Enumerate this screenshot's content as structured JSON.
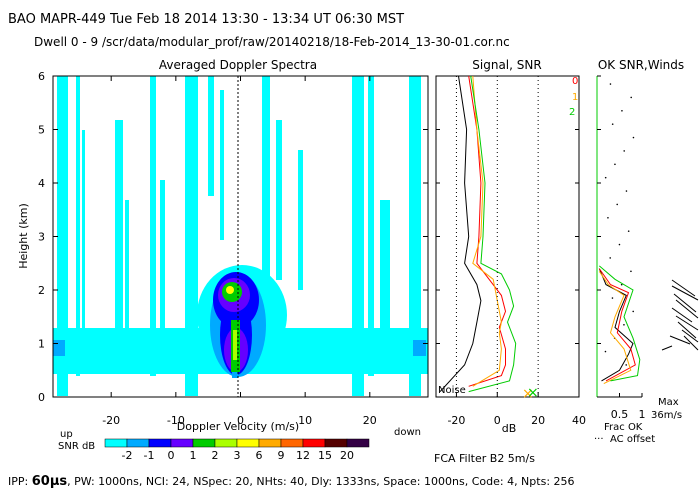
{
  "header": {
    "line1": "BAO  MAPR-449  Tue Feb 18 2014 13:30 - 13:34 UT 06:30 MST",
    "line2": "Dwell  0 -  9   /scr/data/modular_prof/raw/20140218/18-Feb-2014_13-30-01.cor.nc"
  },
  "footer": {
    "ipp_label": "IPP: ",
    "ipp_value": "60",
    "ipp_unit": "μs",
    "params": ", PW: 1000ns, NCI: 24, NSpec: 20, NHts: 40, Dly: 1333ns, Space: 1000ns, Code: 4, Npts: 256"
  },
  "colorbar": {
    "up_label": "up",
    "down_label": "down",
    "snr_label": "SNR dB",
    "values": [
      "-2",
      "-1",
      "0",
      "1",
      "2",
      "3",
      "6",
      "9",
      "12",
      "15",
      "20"
    ],
    "colors": [
      "#00ffff",
      "#00aaff",
      "#0000ff",
      "#6600ff",
      "#00cc00",
      "#aaff00",
      "#ffff00",
      "#ffaa00",
      "#ff6600",
      "#ff0000",
      "#550000",
      "#330044"
    ]
  },
  "fca_label": "FCA Filter B2  5m/s",
  "chart_data": [
    {
      "type": "heatmap",
      "title": "Averaged Doppler Spectra",
      "xlabel": "Doppler Velocity (m/s)",
      "ylabel": "Height (km)",
      "xlim": [
        -29,
        29
      ],
      "ylim": [
        0,
        6
      ],
      "xticks": [
        "-20",
        "-10",
        "0",
        "10",
        "20"
      ],
      "yticks": [
        "0",
        "1",
        "2",
        "3",
        "4",
        "5",
        "6"
      ]
    },
    {
      "type": "line",
      "title": "Signal, SNR",
      "xlabel": "dB",
      "xlim": [
        -30,
        40
      ],
      "ylim": [
        0,
        6
      ],
      "xticks": [
        "-20",
        "0",
        "20",
        "40"
      ],
      "noise_label": "Noise",
      "series": [
        {
          "name": "0",
          "color": "#ff0000",
          "points": [
            [
              -14,
              6
            ],
            [
              -10,
              5.0
            ],
            [
              -8,
              4.0
            ],
            [
              -9,
              3.0
            ],
            [
              -10,
              2.5
            ],
            [
              -4,
              2.2
            ],
            [
              2,
              1.9
            ],
            [
              4,
              1.6
            ],
            [
              1,
              1.3
            ],
            [
              4,
              0.9
            ],
            [
              4,
              0.6
            ],
            [
              2,
              0.4
            ],
            [
              -14,
              0.2
            ]
          ]
        },
        {
          "name": "1",
          "color": "#ffaa00",
          "points": [
            [
              -12,
              6
            ],
            [
              -10,
              5.0
            ],
            [
              -7,
              4.0
            ],
            [
              -8,
              3.0
            ],
            [
              -12,
              2.5
            ],
            [
              -2,
              2.2
            ],
            [
              0,
              1.8
            ],
            [
              2,
              1.4
            ],
            [
              1,
              1.2
            ],
            [
              2,
              0.9
            ],
            [
              1,
              0.5
            ],
            [
              -12,
              0.2
            ]
          ]
        },
        {
          "name": "2",
          "color": "#00cc00",
          "points": [
            [
              -13,
              6
            ],
            [
              -9,
              5.0
            ],
            [
              -6,
              4.0
            ],
            [
              -7,
              3.0
            ],
            [
              -8,
              2.5
            ],
            [
              2,
              2.3
            ],
            [
              6,
              2.0
            ],
            [
              8,
              1.7
            ],
            [
              5,
              1.4
            ],
            [
              9,
              1.0
            ],
            [
              8,
              0.6
            ],
            [
              6,
              0.3
            ],
            [
              -14,
              0.1
            ]
          ]
        },
        {
          "name": "",
          "color": "#000000",
          "points": [
            [
              -19,
              6
            ],
            [
              -15,
              5.0
            ],
            [
              -16,
              4.0
            ],
            [
              -14,
              3.0
            ],
            [
              -16,
              2.5
            ],
            [
              -10,
              2.1
            ],
            [
              -8,
              1.8
            ],
            [
              -10,
              1.4
            ],
            [
              -12,
              1.0
            ],
            [
              -16,
              0.6
            ],
            [
              -28,
              0.1
            ]
          ]
        }
      ]
    },
    {
      "type": "line",
      "title": "OK SNR,Winds",
      "xlabel": "Frac OK",
      "xlim": [
        0,
        1
      ],
      "ylim": [
        0,
        6
      ],
      "xticks": [
        "0.5",
        "1"
      ],
      "ac_label": "AC offset",
      "max_label": "Max",
      "max_value": "36m/s",
      "series": [
        {
          "name": "",
          "color": "#000000",
          "points": [
            [
              0.05,
              2.4
            ],
            [
              0.2,
              2.1
            ],
            [
              0.65,
              1.9
            ],
            [
              0.5,
              1.6
            ],
            [
              0.4,
              1.3
            ],
            [
              0.8,
              1.0
            ],
            [
              0.7,
              0.8
            ],
            [
              0.5,
              0.5
            ],
            [
              0.1,
              0.3
            ]
          ]
        },
        {
          "name": "",
          "color": "#ff0000",
          "points": [
            [
              0.05,
              2.4
            ],
            [
              0.3,
              2.1
            ],
            [
              0.7,
              1.95
            ],
            [
              0.55,
              1.6
            ],
            [
              0.45,
              1.2
            ],
            [
              0.75,
              0.9
            ],
            [
              0.85,
              0.6
            ],
            [
              0.2,
              0.3
            ]
          ]
        },
        {
          "name": "",
          "color": "#ffaa00",
          "points": [
            [
              0.05,
              2.35
            ],
            [
              0.25,
              2.1
            ],
            [
              0.6,
              1.9
            ],
            [
              0.4,
              1.5
            ],
            [
              0.3,
              1.2
            ],
            [
              0.6,
              0.9
            ],
            [
              0.75,
              0.5
            ],
            [
              0.15,
              0.25
            ]
          ]
        },
        {
          "name": "",
          "color": "#00cc00",
          "points": [
            [
              0.05,
              2.45
            ],
            [
              0.4,
              2.2
            ],
            [
              0.8,
              2.0
            ],
            [
              0.6,
              1.5
            ],
            [
              0.8,
              1.1
            ],
            [
              0.95,
              0.7
            ],
            [
              0.9,
              0.4
            ],
            [
              0.3,
              0.3
            ]
          ]
        }
      ]
    }
  ]
}
